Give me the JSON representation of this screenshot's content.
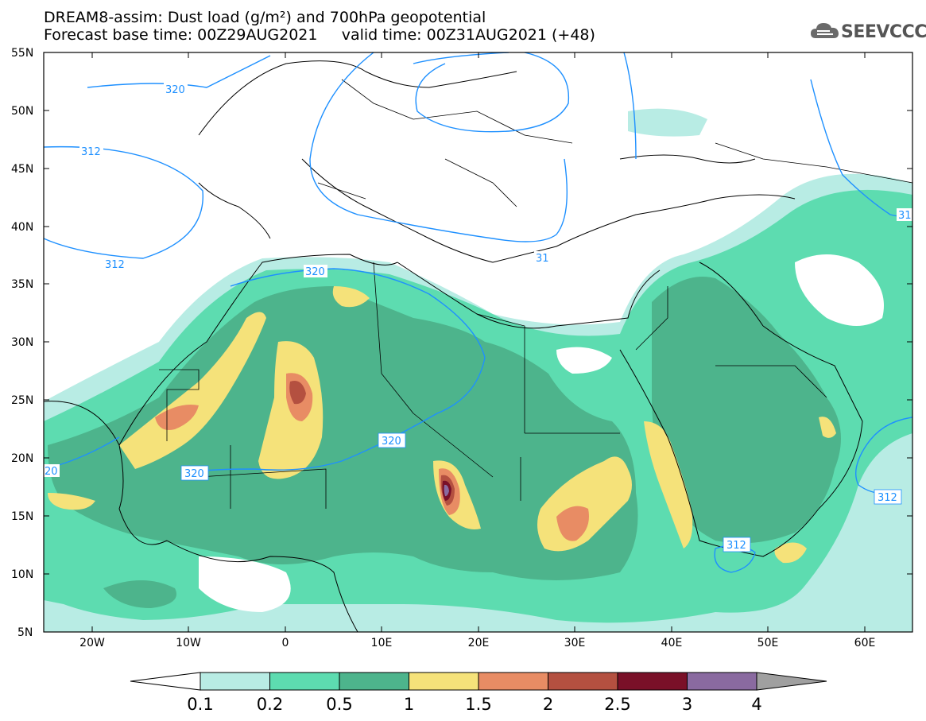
{
  "header": {
    "title_line1": "DREAM8-assim: Dust load (g/m²) and 700hPa geopotential",
    "forecast_base": "Forecast base time: 00Z29AUG2021",
    "valid_time": "valid time: 00Z31AUG2021 (+48)",
    "logo_text": "SEEVCCC"
  },
  "map": {
    "lon_range": [
      -25,
      65
    ],
    "lat_range": [
      5,
      55
    ],
    "lat_ticks": [
      "55N",
      "50N",
      "45N",
      "40N",
      "35N",
      "30N",
      "25N",
      "20N",
      "15N",
      "10N",
      "5N"
    ],
    "lon_ticks": [
      "20W",
      "10W",
      "0",
      "10E",
      "20E",
      "30E",
      "40E",
      "50E",
      "60E"
    ],
    "contour_labels": [
      "320",
      "312",
      "312",
      "320",
      "320",
      "320",
      "20",
      "312",
      "312",
      "31",
      "31"
    ]
  },
  "colorbar": {
    "labels": [
      "0.1",
      "0.2",
      "0.5",
      "1",
      "1.5",
      "2",
      "2.5",
      "3",
      "4"
    ],
    "colors": [
      "#b8ece4",
      "#5ddcb0",
      "#4db48c",
      "#f5e27a",
      "#e88c64",
      "#b45040",
      "#7a1028",
      "#8a6aa0"
    ],
    "under_color": "#ffffff",
    "over_color": "#a0a0a0"
  },
  "colors": {
    "contour": "#1e90ff",
    "coast": "#000000"
  }
}
